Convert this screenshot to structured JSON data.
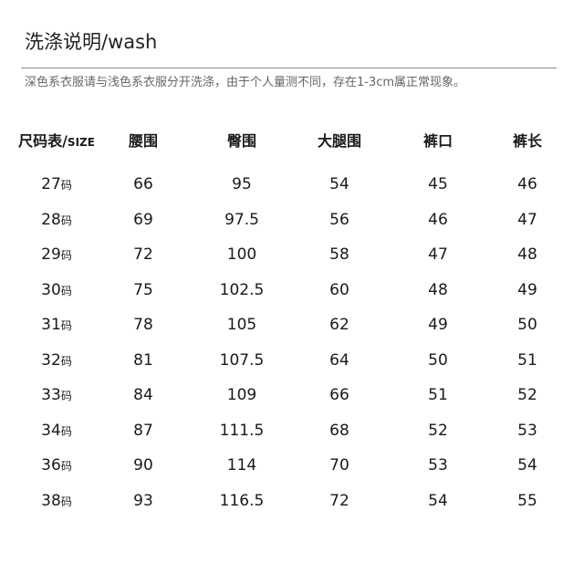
{
  "title": "洗涤说明/wash",
  "note": "深色系衣服请与浅色系衣服分开洗涤，由于个人量测不同，存在1-3cm属正常现象。",
  "size_table": {
    "headers": {
      "size_cn": "尺码表/",
      "size_en": "SIZE",
      "cols": [
        "腰围",
        "臀围",
        "大腿围",
        "裤口",
        "裤长"
      ]
    },
    "size_unit": "码",
    "rows": [
      {
        "size": "27",
        "values": [
          "66",
          "95",
          "54",
          "45",
          "46"
        ]
      },
      {
        "size": "28",
        "values": [
          "69",
          "97.5",
          "56",
          "46",
          "47"
        ]
      },
      {
        "size": "29",
        "values": [
          "72",
          "100",
          "58",
          "47",
          "48"
        ]
      },
      {
        "size": "30",
        "values": [
          "75",
          "102.5",
          "60",
          "48",
          "49"
        ]
      },
      {
        "size": "31",
        "values": [
          "78",
          "105",
          "62",
          "49",
          "50"
        ]
      },
      {
        "size": "32",
        "values": [
          "81",
          "107.5",
          "64",
          "50",
          "51"
        ]
      },
      {
        "size": "33",
        "values": [
          "84",
          "109",
          "66",
          "51",
          "52"
        ]
      },
      {
        "size": "34",
        "values": [
          "87",
          "111.5",
          "68",
          "52",
          "53"
        ]
      },
      {
        "size": "36",
        "values": [
          "90",
          "114",
          "70",
          "53",
          "54"
        ]
      },
      {
        "size": "38",
        "values": [
          "93",
          "116.5",
          "72",
          "54",
          "55"
        ]
      }
    ]
  }
}
